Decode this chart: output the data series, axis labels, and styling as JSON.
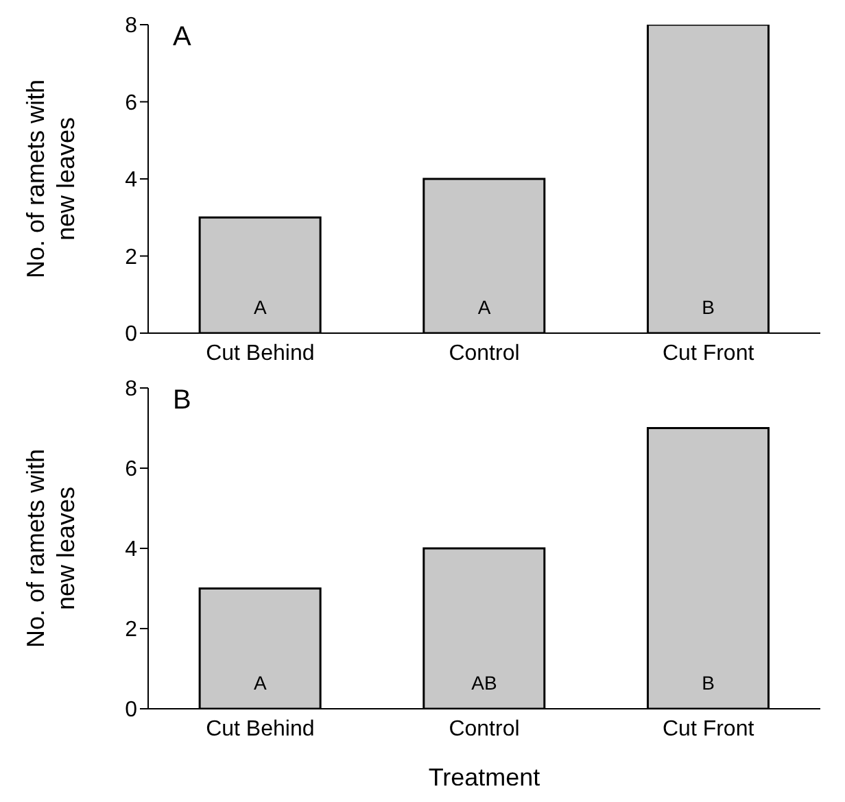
{
  "chart_data": [
    {
      "type": "bar",
      "title": "A",
      "ylabel": "No. of ramets with new leaves",
      "categories": [
        "Cut Behind",
        "Control",
        "Cut Front"
      ],
      "values": [
        3,
        4,
        8
      ],
      "color": "#c8c8c8",
      "ylim": [
        0,
        8
      ],
      "yticks": [
        0,
        2,
        4,
        6,
        8
      ],
      "grid": false,
      "legend": false,
      "annotations": [
        "A",
        "A",
        "B"
      ]
    },
    {
      "type": "bar",
      "title": "B",
      "xlabel": "Treatment",
      "ylabel": "No. of ramets with new leaves",
      "categories": [
        "Cut Behind",
        "Control",
        "Cut Front"
      ],
      "values": [
        3,
        4,
        7
      ],
      "color": "#c8c8c8",
      "ylim": [
        0,
        8
      ],
      "yticks": [
        0,
        2,
        4,
        6,
        8
      ],
      "grid": false,
      "legend": false,
      "annotations": [
        "A",
        "AB",
        "B"
      ]
    }
  ]
}
